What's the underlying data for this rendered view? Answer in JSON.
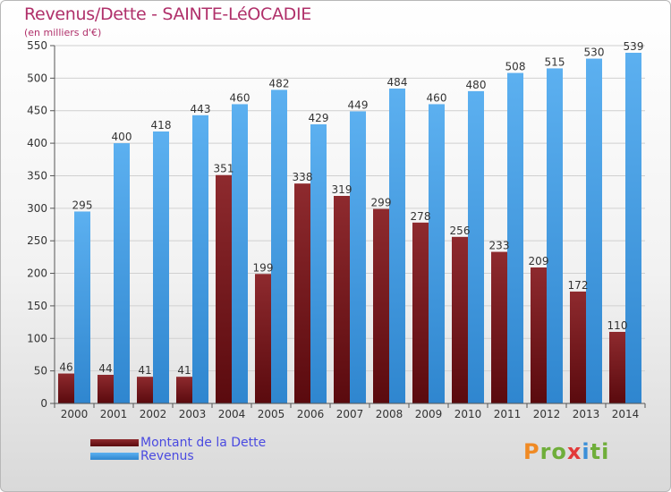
{
  "chart_data": {
    "type": "bar",
    "title": "Revenus/Dette - SAINTE-LéOCADIE",
    "subtitle": "(en milliers d'€)",
    "categories": [
      "2000",
      "2001",
      "2002",
      "2003",
      "2004",
      "2005",
      "2006",
      "2007",
      "2008",
      "2009",
      "2010",
      "2011",
      "2012",
      "2013",
      "2014"
    ],
    "series": [
      {
        "name": "Montant de la Dette",
        "color": "#7a1a1e",
        "values": [
          46,
          44,
          41,
          41,
          351,
          199,
          338,
          319,
          299,
          278,
          256,
          233,
          209,
          172,
          110
        ]
      },
      {
        "name": "Revenus",
        "color": "#4aa3e6",
        "values": [
          295,
          400,
          418,
          443,
          460,
          482,
          429,
          449,
          484,
          460,
          480,
          508,
          515,
          530,
          539
        ]
      }
    ],
    "ylim": [
      0,
      550
    ],
    "yticks": [
      0,
      50,
      100,
      150,
      200,
      250,
      300,
      350,
      400,
      450,
      500,
      550
    ],
    "grid": true,
    "legend": "bottom-left"
  },
  "logo": {
    "text": "Proxiti"
  }
}
